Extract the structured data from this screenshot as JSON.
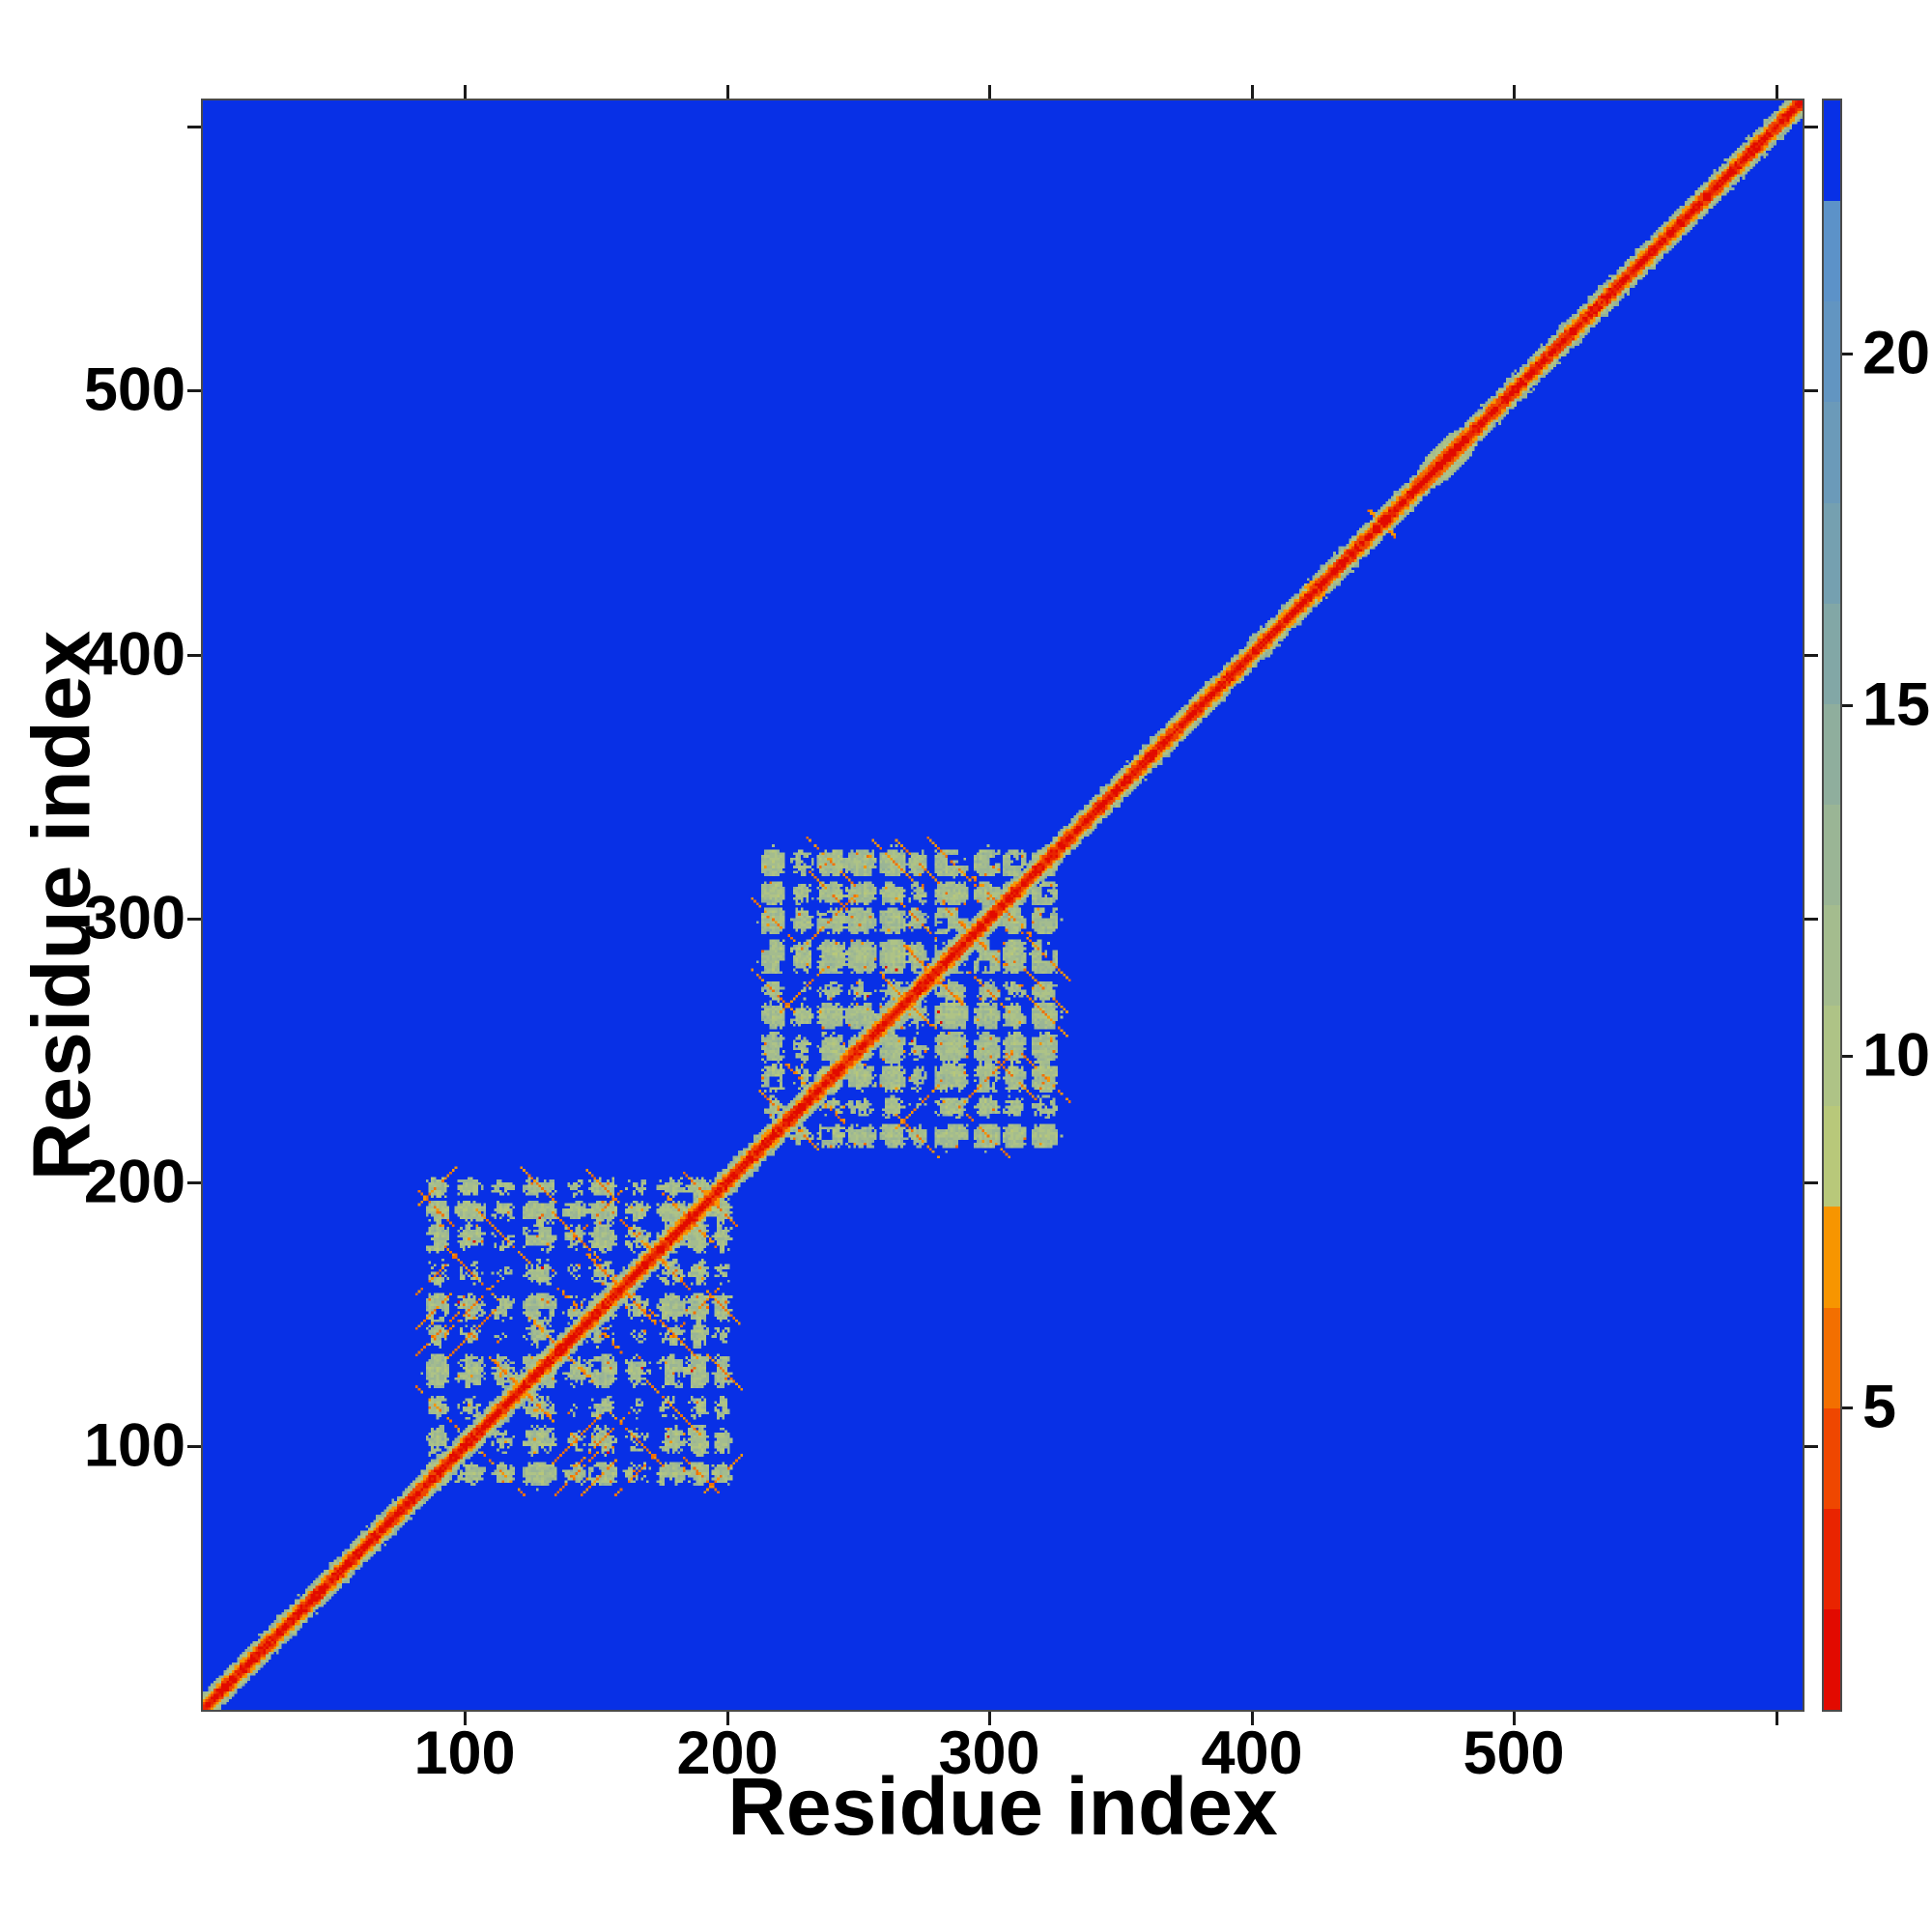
{
  "chart_data": {
    "type": "heatmap",
    "title": "",
    "xlabel": "Residue index",
    "ylabel": "Residue index",
    "n_residues": 610,
    "x_ticks": [
      100,
      200,
      300,
      400,
      500
    ],
    "y_ticks": [
      100,
      200,
      300,
      400,
      500
    ],
    "unlabeled_ticks": [
      600
    ],
    "grid": false,
    "background_color": "#0830e6",
    "colorbar": {
      "position": "right",
      "ticks": [
        5,
        10,
        15,
        20
      ],
      "vmin": 0.7,
      "vmax": 23.6,
      "band_colors": [
        "#e20a00",
        "#e92400",
        "#ef4700",
        "#f36f00",
        "#f79500",
        "#b8c87a",
        "#aec386",
        "#a4bc8e",
        "#9ab595",
        "#8fae9d",
        "#82a7a6",
        "#75a0b0",
        "#6b9ab9",
        "#6295c1",
        "#5c92c8",
        "#0830e6"
      ]
    },
    "features": {
      "description": "symmetric residue-residue distance matrix: red self-contact diagonal with orange/sage halo on blue far-distance background",
      "diagonal_band": {
        "red_halfwidth": 1.5,
        "orange_halfwidth": 3.5,
        "sage_halfwidth": 6
      },
      "domain_clusters": [
        {
          "range": [
            85,
            205
          ]
        },
        {
          "range": [
            213,
            325
          ]
        }
      ],
      "diagonal_widenings": [
        {
          "type": "bump",
          "center": 421,
          "halfwidth": 4
        },
        {
          "type": "cross",
          "center": 449,
          "halfwidth": 5
        },
        {
          "type": "blob",
          "start": 460,
          "end": 481
        }
      ]
    }
  }
}
